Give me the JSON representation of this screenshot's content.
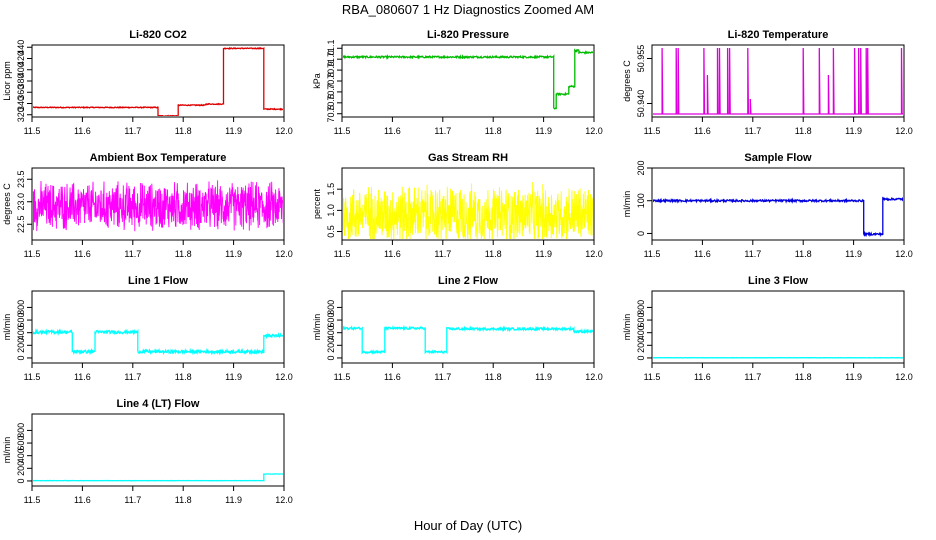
{
  "figure": {
    "title": "RBA_080607  1 Hz Diagnostics Zoomed AM",
    "xlabel": "Hour of Day (UTC)"
  },
  "chart_data": [
    {
      "type": "line",
      "title": "Li-820 CO2",
      "ylabel": "Licor ppm",
      "color": "#dd0000",
      "xlim": [
        11.5,
        12.0
      ],
      "ylim": [
        316,
        444
      ],
      "xticks": [
        "11.5",
        "11.6",
        "11.7",
        "11.8",
        "11.9",
        "12.0"
      ],
      "yticks": [
        "320",
        "340",
        "360",
        "380",
        "400",
        "420",
        "440"
      ],
      "segments": [
        [
          11.5,
          11.75,
          333
        ],
        [
          11.75,
          11.79,
          318
        ],
        [
          11.79,
          11.845,
          337
        ],
        [
          11.845,
          11.88,
          339
        ],
        [
          11.88,
          11.96,
          438
        ],
        [
          11.96,
          12.0,
          330
        ]
      ],
      "noise": 0.8
    },
    {
      "type": "line",
      "title": "Li-820 Pressure",
      "ylabel": "kPa",
      "color": "#00bb00",
      "xlim": [
        11.5,
        12.0
      ],
      "ylim": [
        70.47,
        71.13
      ],
      "xticks": [
        "11.5",
        "11.6",
        "11.7",
        "11.8",
        "11.9",
        "12.0"
      ],
      "yticks": [
        "70.5",
        "70.6",
        "70.7",
        "70.8",
        "70.9",
        "71.0",
        "71.1"
      ],
      "segments": [
        [
          11.5,
          11.92,
          71.02
        ],
        [
          11.92,
          11.925,
          70.55
        ],
        [
          11.925,
          11.95,
          70.68
        ],
        [
          11.95,
          11.962,
          70.75
        ],
        [
          11.962,
          11.97,
          71.08
        ],
        [
          11.97,
          12.0,
          71.06
        ]
      ],
      "noise": 0.008
    },
    {
      "type": "line",
      "title": "Li-820 Temperature",
      "ylabel": "degrees C",
      "color": "#dd00dd",
      "xlim": [
        11.5,
        12.0
      ],
      "ylim": [
        50.9355,
        50.9595
      ],
      "xticks": [
        "11.5",
        "11.6",
        "11.7",
        "11.8",
        "11.9",
        "12.0"
      ],
      "yticks": [
        "50.940",
        "50.955"
      ],
      "baseline": 50.9365,
      "spikes": [
        [
          11.52,
          50.9585
        ],
        [
          11.548,
          50.9585
        ],
        [
          11.552,
          50.9585
        ],
        [
          11.603,
          50.9585
        ],
        [
          11.61,
          50.9495
        ],
        [
          11.63,
          50.9585
        ],
        [
          11.634,
          50.9585
        ],
        [
          11.65,
          50.9585
        ],
        [
          11.654,
          50.9585
        ],
        [
          11.69,
          50.9585
        ],
        [
          11.695,
          50.9415
        ],
        [
          11.8,
          50.9585
        ],
        [
          11.832,
          50.9585
        ],
        [
          11.85,
          50.9495
        ],
        [
          11.86,
          50.9585
        ],
        [
          11.902,
          50.9585
        ],
        [
          11.91,
          50.9585
        ],
        [
          11.914,
          50.9585
        ],
        [
          11.925,
          50.9585
        ],
        [
          11.928,
          50.9585
        ],
        [
          11.995,
          50.9585
        ]
      ]
    },
    {
      "type": "line",
      "title": "Ambient Box Temperature",
      "ylabel": "degrees C",
      "color": "#ff00ff",
      "xlim": [
        11.5,
        12.0
      ],
      "ylim": [
        22.15,
        23.75
      ],
      "xticks": [
        "11.5",
        "11.6",
        "11.7",
        "11.8",
        "11.9",
        "12.0"
      ],
      "yticks": [
        "22.5",
        "23.0",
        "23.5"
      ],
      "center": 22.9,
      "spread": 0.62
    },
    {
      "type": "line",
      "title": "Gas Stream RH",
      "ylabel": "percent",
      "color": "#ffff00",
      "xlim": [
        11.5,
        12.0
      ],
      "ylim": [
        0.3,
        2.0
      ],
      "xticks": [
        "11.5",
        "11.6",
        "11.7",
        "11.8",
        "11.9",
        "12.0"
      ],
      "yticks": [
        "0.5",
        "1.0",
        "1.5"
      ],
      "center": 0.9,
      "spread": 0.8
    },
    {
      "type": "line",
      "title": "Sample Flow",
      "ylabel": "ml/min",
      "color": "#0000dd",
      "xlim": [
        11.5,
        12.0
      ],
      "ylim": [
        -20,
        200
      ],
      "xticks": [
        "11.5",
        "11.6",
        "11.7",
        "11.8",
        "11.9",
        "12.0"
      ],
      "yticks": [
        "0",
        "100",
        "200"
      ],
      "segments": [
        [
          11.5,
          11.92,
          100
        ],
        [
          11.92,
          11.958,
          -2
        ],
        [
          11.958,
          12.0,
          105
        ]
      ],
      "noise": 3
    },
    {
      "type": "line",
      "title": "Line 1 Flow",
      "ylabel": "ml/min",
      "color": "#00ffff",
      "xlim": [
        11.5,
        12.0
      ],
      "ylim": [
        -80,
        1060
      ],
      "xticks": [
        "11.5",
        "11.6",
        "11.7",
        "11.8",
        "11.9",
        "12.0"
      ],
      "yticks": [
        "0",
        "200",
        "400",
        "600",
        "800"
      ],
      "segments": [
        [
          11.5,
          11.58,
          410
        ],
        [
          11.58,
          11.625,
          100
        ],
        [
          11.625,
          11.71,
          410
        ],
        [
          11.71,
          11.96,
          100
        ],
        [
          11.96,
          12.0,
          350
        ]
      ],
      "noise": 24
    },
    {
      "type": "line",
      "title": "Line 2 Flow",
      "ylabel": "ml/min",
      "color": "#00ffff",
      "xlim": [
        11.5,
        12.0
      ],
      "ylim": [
        -80,
        1060
      ],
      "xticks": [
        "11.5",
        "11.6",
        "11.7",
        "11.8",
        "11.9",
        "12.0"
      ],
      "yticks": [
        "0",
        "200",
        "400",
        "600",
        "800"
      ],
      "segments": [
        [
          11.5,
          11.54,
          470
        ],
        [
          11.54,
          11.585,
          95
        ],
        [
          11.585,
          11.665,
          470
        ],
        [
          11.665,
          11.708,
          95
        ],
        [
          11.708,
          11.96,
          460
        ],
        [
          11.96,
          12.0,
          420
        ]
      ],
      "noise": 18
    },
    {
      "type": "line",
      "title": "Line 3 Flow",
      "ylabel": "ml/min",
      "color": "#00ffff",
      "xlim": [
        11.5,
        12.0
      ],
      "ylim": [
        -80,
        1060
      ],
      "xticks": [
        "11.5",
        "11.6",
        "11.7",
        "11.8",
        "11.9",
        "12.0"
      ],
      "yticks": [
        "0",
        "200",
        "400",
        "600",
        "800"
      ],
      "segments": [
        [
          11.5,
          12.0,
          3
        ]
      ],
      "noise": 2
    },
    {
      "type": "line",
      "title": "Line 4 (LT) Flow",
      "ylabel": "ml/min",
      "color": "#00ffff",
      "xlim": [
        11.5,
        12.0
      ],
      "ylim": [
        -80,
        1060
      ],
      "xticks": [
        "11.5",
        "11.6",
        "11.7",
        "11.8",
        "11.9",
        "12.0"
      ],
      "yticks": [
        "0",
        "200",
        "400",
        "600",
        "800"
      ],
      "segments": [
        [
          11.5,
          11.96,
          5
        ],
        [
          11.96,
          12.0,
          110
        ]
      ],
      "noise": 2
    }
  ]
}
